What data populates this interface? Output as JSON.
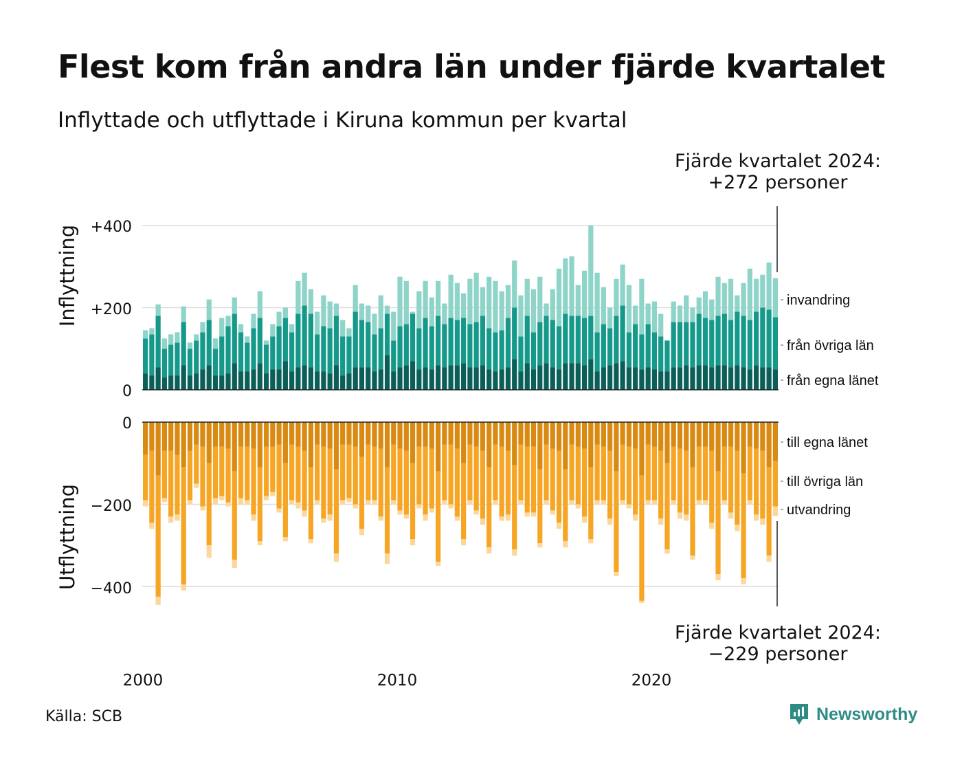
{
  "title": "Flest kom från andra län under fjärde kvartalet",
  "subtitle": "Inflyttade och utflyttade i Kiruna kommun per kvartal",
  "source": "Källa: SCB",
  "brand": "Newsworthy",
  "icons": {
    "logo": "newsworthy-logo-icon"
  },
  "chart_data": {
    "type": "bar",
    "stacked": true,
    "x_labels": [
      "2000",
      "2010",
      "2020"
    ],
    "x_start": "2000 Q1",
    "x_end": "2024 Q4",
    "gridlines": true,
    "legend_placement": "right",
    "panels": [
      {
        "name": "Inflyttning",
        "ylabel": "Inflyttning",
        "ylim": [
          0,
          400
        ],
        "y_ticks": [
          0,
          200,
          400
        ],
        "y_tick_labels": [
          "0",
          "+200",
          "+400"
        ],
        "annotation": {
          "line1": "Fjärde kvartalet 2024:",
          "line2": "+272 personer"
        },
        "series": [
          {
            "name": "invandring",
            "color": "#8fd4c9"
          },
          {
            "name": "från övriga län",
            "color": "#15998a"
          },
          {
            "name": "från egna länet",
            "color": "#0b5f58"
          }
        ]
      },
      {
        "name": "Utflyttning",
        "ylabel": "Utflyttning",
        "ylim": [
          -400,
          0
        ],
        "y_ticks": [
          0,
          -200,
          -400
        ],
        "y_tick_labels": [
          "0",
          "−200",
          "−400"
        ],
        "annotation": {
          "line1": "Fjärde kvartalet 2024:",
          "line2": "−229 personer"
        },
        "series": [
          {
            "name": "till egna länet",
            "color": "#d98a12"
          },
          {
            "name": "till övriga län",
            "color": "#f6a524"
          },
          {
            "name": "utvandring",
            "color": "#fbd79c"
          }
        ]
      }
    ],
    "in_totals": [
      145,
      150,
      208,
      125,
      135,
      140,
      203,
      115,
      135,
      165,
      220,
      125,
      175,
      180,
      225,
      160,
      130,
      185,
      240,
      120,
      160,
      190,
      200,
      160,
      265,
      285,
      245,
      190,
      230,
      215,
      210,
      170,
      150,
      255,
      210,
      205,
      185,
      230,
      205,
      190,
      275,
      265,
      190,
      240,
      265,
      225,
      265,
      210,
      280,
      260,
      235,
      270,
      285,
      250,
      275,
      265,
      240,
      255,
      315,
      230,
      270,
      245,
      275,
      210,
      245,
      295,
      320,
      325,
      255,
      290,
      400,
      285,
      250,
      200,
      270,
      305,
      255,
      205,
      270,
      210,
      215,
      185,
      120,
      215,
      205,
      230,
      200,
      225,
      240,
      220,
      275,
      260,
      270,
      230,
      260,
      295,
      270,
      280,
      310,
      272
    ],
    "in_nonimm": [
      125,
      135,
      180,
      100,
      110,
      115,
      165,
      100,
      120,
      140,
      170,
      100,
      130,
      155,
      185,
      140,
      115,
      150,
      175,
      110,
      130,
      155,
      175,
      140,
      185,
      205,
      185,
      135,
      155,
      150,
      180,
      130,
      130,
      190,
      170,
      165,
      135,
      150,
      185,
      120,
      155,
      160,
      185,
      150,
      175,
      155,
      180,
      160,
      175,
      170,
      175,
      160,
      165,
      180,
      150,
      140,
      145,
      175,
      200,
      130,
      180,
      140,
      165,
      180,
      170,
      155,
      185,
      180,
      180,
      175,
      180,
      140,
      160,
      150,
      180,
      205,
      140,
      160,
      135,
      160,
      140,
      130,
      120,
      165,
      165,
      165,
      165,
      185,
      175,
      170,
      180,
      185,
      170,
      190,
      180,
      170,
      190,
      200,
      195,
      177
    ],
    "in_own": [
      40,
      35,
      55,
      30,
      35,
      35,
      60,
      35,
      40,
      50,
      60,
      35,
      35,
      40,
      65,
      45,
      45,
      50,
      65,
      40,
      50,
      50,
      70,
      45,
      55,
      60,
      55,
      45,
      45,
      40,
      60,
      35,
      40,
      55,
      55,
      55,
      45,
      50,
      85,
      45,
      55,
      60,
      70,
      50,
      55,
      50,
      60,
      55,
      60,
      60,
      65,
      55,
      55,
      60,
      50,
      45,
      50,
      55,
      75,
      45,
      65,
      50,
      60,
      65,
      55,
      50,
      65,
      65,
      65,
      60,
      75,
      45,
      55,
      60,
      65,
      70,
      55,
      55,
      50,
      55,
      50,
      45,
      45,
      55,
      55,
      60,
      55,
      60,
      60,
      55,
      60,
      60,
      55,
      60,
      55,
      50,
      60,
      55,
      55,
      50
    ],
    "out_totals": [
      205,
      260,
      445,
      195,
      245,
      240,
      410,
      200,
      160,
      215,
      330,
      200,
      190,
      205,
      355,
      200,
      200,
      240,
      300,
      190,
      180,
      220,
      290,
      200,
      210,
      230,
      295,
      200,
      245,
      240,
      340,
      200,
      195,
      210,
      275,
      200,
      200,
      240,
      345,
      200,
      225,
      235,
      300,
      210,
      240,
      220,
      350,
      200,
      210,
      240,
      300,
      200,
      225,
      250,
      320,
      200,
      240,
      240,
      325,
      200,
      230,
      230,
      305,
      200,
      225,
      260,
      305,
      200,
      210,
      245,
      295,
      200,
      200,
      250,
      375,
      200,
      210,
      240,
      440,
      200,
      200,
      250,
      320,
      200,
      235,
      240,
      335,
      200,
      200,
      260,
      385,
      200,
      235,
      265,
      395,
      200,
      240,
      250,
      340,
      229
    ],
    "out_nonemig": [
      190,
      245,
      425,
      185,
      230,
      225,
      395,
      190,
      150,
      205,
      300,
      185,
      180,
      195,
      335,
      185,
      190,
      225,
      290,
      180,
      170,
      210,
      280,
      190,
      195,
      215,
      285,
      190,
      235,
      225,
      320,
      190,
      185,
      200,
      260,
      190,
      190,
      230,
      320,
      190,
      215,
      225,
      285,
      200,
      225,
      210,
      340,
      190,
      200,
      230,
      285,
      190,
      215,
      235,
      305,
      190,
      230,
      225,
      310,
      190,
      220,
      220,
      295,
      190,
      215,
      245,
      290,
      190,
      200,
      230,
      285,
      190,
      190,
      235,
      365,
      190,
      200,
      225,
      435,
      190,
      190,
      235,
      310,
      190,
      220,
      225,
      325,
      190,
      190,
      245,
      370,
      190,
      220,
      250,
      380,
      190,
      225,
      235,
      325,
      205
    ],
    "out_own": [
      80,
      70,
      130,
      70,
      70,
      80,
      110,
      70,
      55,
      60,
      100,
      60,
      60,
      65,
      120,
      60,
      60,
      65,
      110,
      60,
      60,
      55,
      100,
      55,
      60,
      70,
      110,
      55,
      60,
      65,
      115,
      55,
      55,
      60,
      85,
      55,
      60,
      65,
      110,
      55,
      65,
      70,
      100,
      60,
      60,
      65,
      120,
      55,
      55,
      65,
      100,
      55,
      60,
      70,
      110,
      55,
      60,
      70,
      105,
      55,
      60,
      60,
      115,
      55,
      65,
      70,
      115,
      55,
      60,
      65,
      110,
      55,
      60,
      70,
      120,
      55,
      60,
      65,
      130,
      55,
      60,
      70,
      100,
      60,
      65,
      70,
      110,
      60,
      60,
      70,
      120,
      60,
      60,
      70,
      125,
      60,
      65,
      70,
      110,
      95
    ]
  }
}
